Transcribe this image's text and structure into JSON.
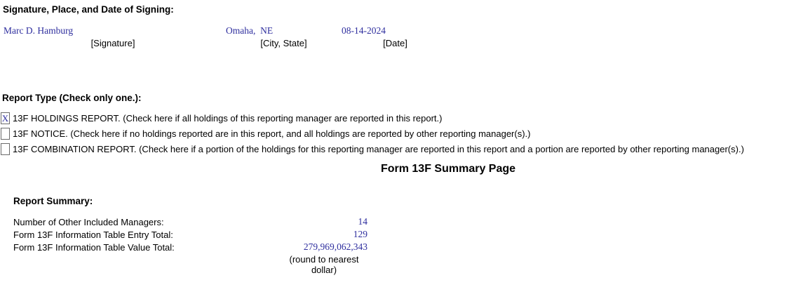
{
  "signature_section": {
    "heading": "Signature, Place, and Date of Signing:",
    "columns": [
      {
        "value": "Marc D. Hamburg",
        "label": "[Signature]"
      },
      {
        "value": "Omaha,  NE",
        "label": "[City, State]"
      },
      {
        "value": "08-14-2024",
        "label": "[Date]"
      }
    ]
  },
  "report_type": {
    "heading": "Report Type (Check only one.):",
    "options": [
      {
        "mark": "X",
        "checked": true,
        "label": "13F HOLDINGS REPORT. (Check here if all holdings of this reporting manager are reported in this report.)"
      },
      {
        "mark": "",
        "checked": false,
        "label": "13F NOTICE. (Check here if no holdings reported are in this report, and all holdings are reported by other reporting manager(s).)"
      },
      {
        "mark": "",
        "checked": false,
        "label": "13F COMBINATION REPORT. (Check here if a portion of the holdings for this reporting manager are reported in this report and a portion are reported by other reporting manager(s).)"
      }
    ]
  },
  "summary_page": {
    "title": "Form 13F Summary Page",
    "heading": "Report Summary:",
    "rows": [
      {
        "label": "Number of Other Included Managers:",
        "value": "14"
      },
      {
        "label": "Form 13F Information Table Entry Total:",
        "value": "129"
      },
      {
        "label": "Form 13F Information Table Value Total:",
        "value": "279,969,062,343"
      }
    ],
    "note": "(round to nearest dollar)"
  },
  "colors": {
    "filled_value_blue": "#2e2e9e",
    "text_black": "#000000",
    "checkbox_border_gray": "#6b6b6b"
  }
}
